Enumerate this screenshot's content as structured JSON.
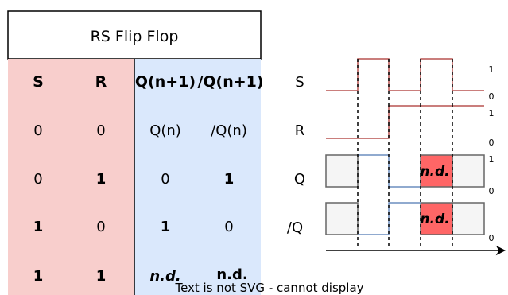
{
  "title": "RS Flip Flop",
  "table": {
    "headers": [
      "S",
      "R",
      "Q(n+1)",
      "/Q(n+1)"
    ],
    "rows": [
      [
        "0",
        "0",
        "Q(n)",
        "/Q(n)"
      ],
      [
        "0",
        "1",
        "0",
        "1"
      ],
      [
        "1",
        "0",
        "1",
        "0"
      ],
      [
        "1",
        "1",
        "n.d.",
        "n.d."
      ]
    ]
  },
  "timing": {
    "signals": [
      "S",
      "R",
      "Q",
      "/Q"
    ],
    "levels": {
      "s_high": "1",
      "s_low": "0",
      "r_high": "1",
      "r_low": "0",
      "q_high": "1",
      "q_low": "0",
      "qn_low": "0"
    },
    "undefined_label": "n.d."
  },
  "footer_text": "Text is not SVG - cannot display",
  "colors": {
    "sr_bg": "#f8cecc",
    "q_bg": "#dae8fc",
    "wave_sr": "#b85450",
    "wave_q": "#6c8ebf",
    "undefined_fill": "#ff6666",
    "state_box_fill": "#f5f5f5",
    "state_box_stroke": "#666666"
  }
}
